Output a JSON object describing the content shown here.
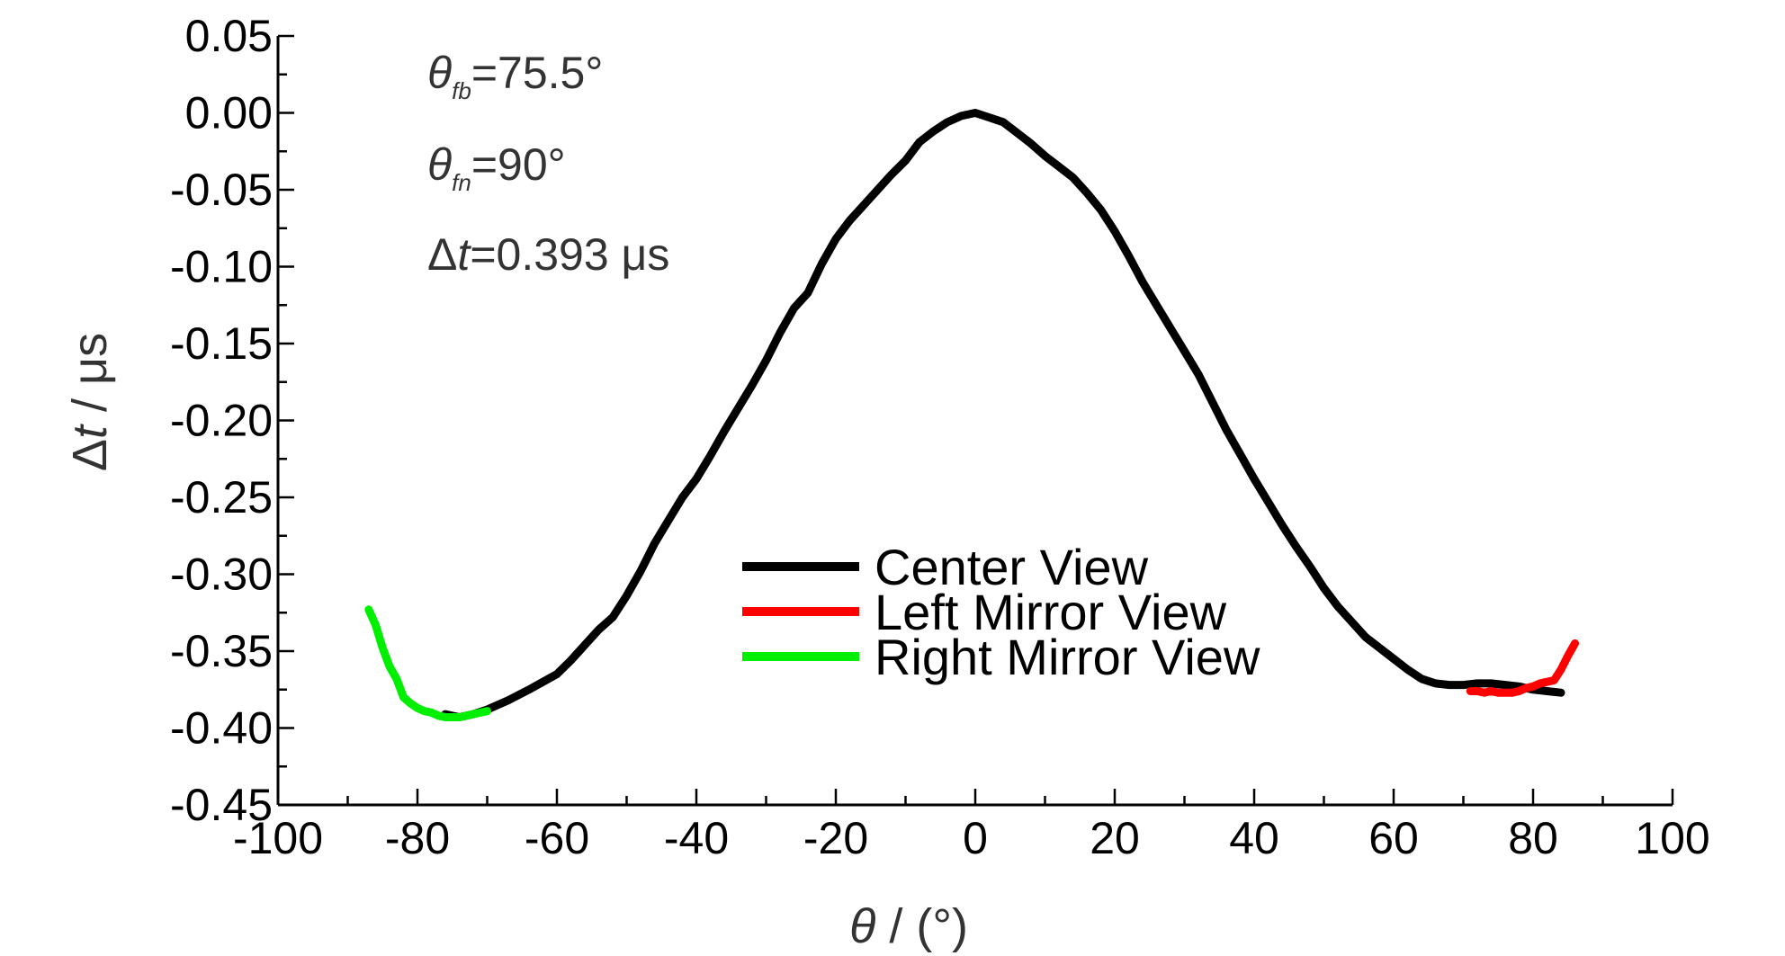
{
  "chart_data": {
    "type": "line",
    "title": "",
    "xlabel": {
      "sym": "θ",
      "rest": " / (°)"
    },
    "ylabel": {
      "pre": "Δ",
      "sym": "t",
      "rest": " / μs"
    },
    "xlim": [
      -100,
      100
    ],
    "ylim": [
      -0.45,
      0.05
    ],
    "grid": false,
    "legend_position": "center-right",
    "x_ticks": [
      -100,
      -80,
      -60,
      -40,
      -20,
      0,
      20,
      40,
      60,
      80,
      100
    ],
    "x_tick_labels": [
      "-100",
      "-80",
      "-60",
      "-40",
      "-20",
      "0",
      "20",
      "40",
      "60",
      "80",
      "100"
    ],
    "y_ticks": [
      0.05,
      0.0,
      -0.05,
      -0.1,
      -0.15,
      -0.2,
      -0.25,
      -0.3,
      -0.35,
      -0.4,
      -0.45
    ],
    "y_tick_labels": [
      "0.05",
      "0.00",
      "-0.05",
      "-0.10",
      "-0.15",
      "-0.20",
      "-0.25",
      "-0.30",
      "-0.35",
      "-0.40",
      "-0.45"
    ],
    "annotations": [
      {
        "sym": "θ",
        "sub": "fb",
        "rest": "=75.5°"
      },
      {
        "sym": "θ",
        "sub": "fn",
        "rest": "=90°"
      },
      {
        "pre": "Δ",
        "sym": "t",
        "rest": "=0.393 μs"
      }
    ],
    "series": [
      {
        "name": "Center View",
        "color": "#000000",
        "x": [
          -76,
          -74,
          -72,
          -70,
          -67,
          -64,
          -62,
          -60,
          -58,
          -56,
          -54,
          -52,
          -50,
          -48,
          -46,
          -44,
          -42,
          -40,
          -38,
          -36,
          -34,
          -32,
          -30,
          -28,
          -26,
          -24,
          -22,
          -20,
          -18,
          -16,
          -14,
          -12,
          -10,
          -8,
          -6,
          -4,
          -2,
          0,
          2,
          4,
          6,
          8,
          10,
          12,
          14,
          16,
          18,
          20,
          22,
          24,
          26,
          28,
          30,
          32,
          34,
          36,
          38,
          40,
          42,
          44,
          46,
          48,
          50,
          52,
          54,
          56,
          58,
          60,
          62,
          64,
          66,
          68,
          70,
          72,
          74,
          76,
          78,
          80,
          82,
          84
        ],
        "y": [
          -0.391,
          -0.393,
          -0.391,
          -0.388,
          -0.382,
          -0.375,
          -0.37,
          -0.365,
          -0.356,
          -0.346,
          -0.336,
          -0.328,
          -0.314,
          -0.298,
          -0.28,
          -0.265,
          -0.25,
          -0.238,
          -0.223,
          -0.207,
          -0.192,
          -0.177,
          -0.161,
          -0.143,
          -0.127,
          -0.117,
          -0.098,
          -0.082,
          -0.07,
          -0.06,
          -0.05,
          -0.04,
          -0.031,
          -0.019,
          -0.012,
          -0.006,
          -0.002,
          0.0,
          -0.003,
          -0.006,
          -0.013,
          -0.02,
          -0.028,
          -0.035,
          -0.042,
          -0.052,
          -0.063,
          -0.077,
          -0.093,
          -0.11,
          -0.125,
          -0.14,
          -0.155,
          -0.17,
          -0.188,
          -0.206,
          -0.222,
          -0.238,
          -0.253,
          -0.268,
          -0.282,
          -0.295,
          -0.309,
          -0.321,
          -0.331,
          -0.341,
          -0.348,
          -0.355,
          -0.362,
          -0.368,
          -0.371,
          -0.372,
          -0.372,
          -0.371,
          -0.371,
          -0.372,
          -0.373,
          -0.375,
          -0.376,
          -0.377
        ]
      },
      {
        "name": "Left Mirror View",
        "color": "#ff0000",
        "x": [
          71,
          72,
          73,
          74,
          75,
          76,
          77,
          78,
          79,
          80,
          81,
          82,
          83,
          84,
          85,
          86
        ],
        "y": [
          -0.376,
          -0.376,
          -0.377,
          -0.376,
          -0.377,
          -0.377,
          -0.377,
          -0.376,
          -0.374,
          -0.373,
          -0.371,
          -0.37,
          -0.369,
          -0.362,
          -0.353,
          -0.345
        ]
      },
      {
        "name": "Right Mirror View",
        "color": "#00ee00",
        "x": [
          -87,
          -86,
          -85,
          -84,
          -83,
          -82,
          -81,
          -80,
          -79,
          -78,
          -77,
          -76,
          -75,
          -74,
          -73,
          -72,
          -71,
          -70
        ],
        "y": [
          -0.323,
          -0.333,
          -0.348,
          -0.36,
          -0.368,
          -0.38,
          -0.384,
          -0.387,
          -0.389,
          -0.39,
          -0.392,
          -0.393,
          -0.393,
          -0.393,
          -0.392,
          -0.391,
          -0.39,
          -0.389
        ]
      }
    ]
  }
}
